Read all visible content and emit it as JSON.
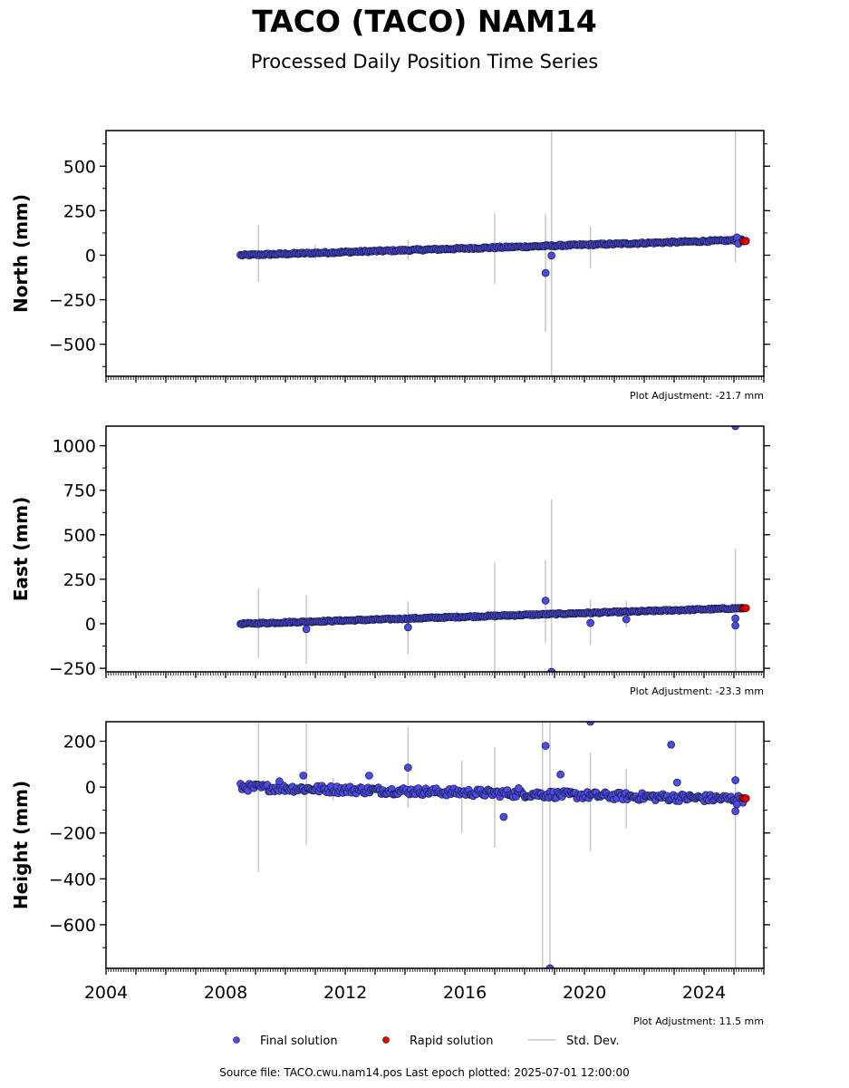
{
  "title": "TACO (TACO) NAM14",
  "subtitle": "Processed Daily Position Time Series",
  "footer": "Source file: TACO.cwu.nam14.pos  Last epoch plotted: 2025-07-01 12:00:00",
  "colors": {
    "final": "#4b4be6",
    "rapid": "#e00000",
    "std": "#c8c8c8"
  },
  "chart_data": [
    {
      "type": "scatter",
      "ylabel": "North (mm)",
      "adjustment": "Plot Adjustment: -21.7 mm",
      "ylim": [
        -680,
        700
      ],
      "yticks": [
        -500,
        -250,
        0,
        250,
        500
      ],
      "ytick_labels": [
        "−500",
        "−250",
        "0",
        "250",
        "500"
      ],
      "xlim": [
        2004,
        2026
      ],
      "trend": {
        "start": [
          2008.5,
          0
        ],
        "end": [
          2025.3,
          85
        ],
        "spread": 5
      },
      "outliers": [
        [
          2018.7,
          -100
        ],
        [
          2018.9,
          -2
        ],
        [
          2025.1,
          100
        ],
        [
          2025.15,
          65
        ]
      ],
      "errorbars": [
        [
          2009.1,
          -150,
          170
        ],
        [
          2017.0,
          -160,
          235
        ],
        [
          2018.7,
          -430,
          230
        ],
        [
          2018.9,
          -680,
          700
        ],
        [
          2020.2,
          -75,
          160
        ],
        [
          2025.05,
          -40,
          700
        ],
        [
          2014.1,
          -20,
          85
        ],
        [
          2011.0,
          -20,
          60
        ]
      ],
      "rapid": [
        [
          2025.3,
          79
        ],
        [
          2025.35,
          78
        ],
        [
          2025.4,
          80
        ]
      ]
    },
    {
      "type": "scatter",
      "ylabel": "East (mm)",
      "adjustment": "Plot Adjustment: -23.3 mm",
      "ylim": [
        -270,
        1110
      ],
      "yticks": [
        -250,
        0,
        250,
        500,
        750,
        1000
      ],
      "ytick_labels": [
        "−250",
        "0",
        "250",
        "500",
        "750",
        "1000"
      ],
      "xlim": [
        2004,
        2026
      ],
      "trend": {
        "start": [
          2008.5,
          0
        ],
        "end": [
          2025.3,
          88
        ],
        "spread": 4
      },
      "outliers": [
        [
          2018.7,
          130
        ],
        [
          2018.9,
          -270
        ],
        [
          2010.7,
          -30
        ],
        [
          2014.1,
          -20
        ],
        [
          2020.2,
          5
        ],
        [
          2021.4,
          25
        ],
        [
          2025.05,
          1110
        ],
        [
          2025.05,
          -10
        ],
        [
          2025.05,
          30
        ]
      ],
      "errorbars": [
        [
          2009.1,
          -190,
          200
        ],
        [
          2010.7,
          -225,
          160
        ],
        [
          2014.1,
          -170,
          125
        ],
        [
          2017.0,
          -270,
          345
        ],
        [
          2018.7,
          -105,
          360
        ],
        [
          2018.9,
          -270,
          700
        ],
        [
          2020.2,
          -120,
          135
        ],
        [
          2021.4,
          -20,
          130
        ],
        [
          2025.05,
          -270,
          420
        ]
      ],
      "rapid": [
        [
          2025.3,
          86
        ],
        [
          2025.35,
          87
        ],
        [
          2025.4,
          88
        ]
      ]
    },
    {
      "type": "scatter",
      "ylabel": "Height (mm)",
      "adjustment": "Plot Adjustment: 11.5 mm",
      "ylim": [
        -790,
        285
      ],
      "yticks": [
        -600,
        -400,
        -200,
        0,
        200
      ],
      "ytick_labels": [
        "−600",
        "−400",
        "−200",
        "0",
        "200"
      ],
      "xlim": [
        2004,
        2026
      ],
      "trend": {
        "start": [
          2008.5,
          0
        ],
        "end": [
          2025.3,
          -52
        ],
        "spread": 16
      },
      "outliers": [
        [
          2009.8,
          25
        ],
        [
          2010.6,
          50
        ],
        [
          2012.8,
          50
        ],
        [
          2014.1,
          85
        ],
        [
          2017.3,
          -130
        ],
        [
          2017.8,
          -5
        ],
        [
          2018.7,
          180
        ],
        [
          2018.85,
          -790
        ],
        [
          2019.2,
          55
        ],
        [
          2020.2,
          285
        ],
        [
          2022.9,
          185
        ],
        [
          2023.1,
          20
        ],
        [
          2025.05,
          30
        ],
        [
          2025.05,
          -105
        ],
        [
          2025.1,
          -75
        ]
      ],
      "errorbars": [
        [
          2009.1,
          -370,
          280
        ],
        [
          2010.7,
          -250,
          280
        ],
        [
          2011.6,
          -60,
          40
        ],
        [
          2014.1,
          -90,
          260
        ],
        [
          2015.9,
          -200,
          115
        ],
        [
          2017.0,
          -265,
          175
        ],
        [
          2018.6,
          -790,
          285
        ],
        [
          2018.85,
          -790,
          285
        ],
        [
          2020.2,
          -280,
          150
        ],
        [
          2021.4,
          -180,
          80
        ],
        [
          2025.05,
          -790,
          285
        ]
      ],
      "rapid": [
        [
          2025.3,
          -48
        ],
        [
          2025.35,
          -50
        ],
        [
          2025.4,
          -49
        ]
      ]
    }
  ],
  "x_ticks": [
    2004,
    2008,
    2012,
    2016,
    2020,
    2024
  ],
  "x_tick_labels": [
    "2004",
    "2008",
    "2012",
    "2016",
    "2020",
    "2024"
  ],
  "legend": {
    "final": "Final solution",
    "rapid": "Rapid solution",
    "std": "Std. Dev."
  }
}
